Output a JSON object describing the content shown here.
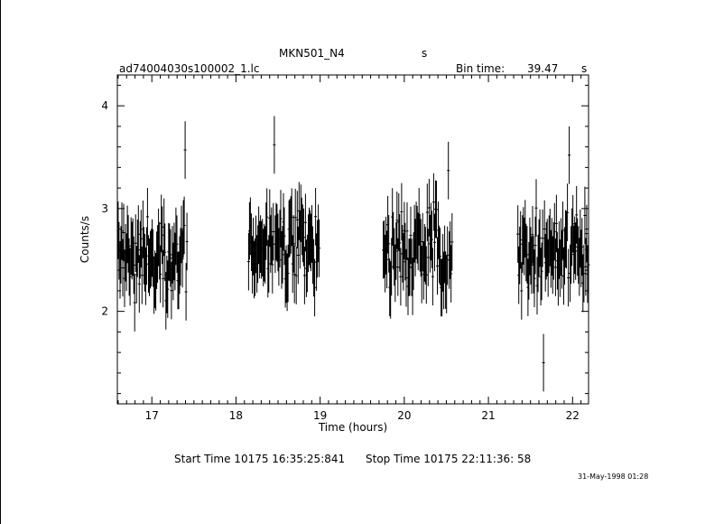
{
  "header": {
    "source_name": "MKN501_N4",
    "unit_flag": "s",
    "file_name": "ad74004030s100002_1.lc",
    "bin_time_label": "Bin time:",
    "bin_time_value": "39.47",
    "bin_time_unit": "s"
  },
  "footer": {
    "start_time": "Start Time 10175 16:35:25:841",
    "stop_time": "Stop Time 10175 22:11:36: 58",
    "timestamp": "31-May-1998 01:28"
  },
  "chart_data": {
    "type": "scatter",
    "xlabel": "Time (hours)",
    "ylabel": "Counts/s",
    "xlim": [
      16.59,
      22.19
    ],
    "ylim": [
      1.1,
      4.3
    ],
    "x_ticks": [
      17,
      18,
      19,
      20,
      21,
      22
    ],
    "y_ticks": [
      2,
      3,
      4
    ],
    "grid": false,
    "segments": [
      {
        "start": 16.6,
        "end": 17.42,
        "mean": 2.55,
        "spread": 0.32,
        "peak": {
          "x": 17.4,
          "y": 3.85
        }
      },
      {
        "start": 18.15,
        "end": 19.0,
        "mean": 2.6,
        "spread": 0.3,
        "peak": {
          "x": 18.45,
          "y": 3.9
        }
      },
      {
        "start": 19.75,
        "end": 20.57,
        "mean": 2.6,
        "spread": 0.3,
        "peak": {
          "x": 20.52,
          "y": 3.65
        }
      },
      {
        "start": 21.35,
        "end": 22.19,
        "mean": 2.6,
        "spread": 0.3,
        "peak": {
          "x": 21.96,
          "y": 3.8
        },
        "low": {
          "x": 21.66,
          "y": 1.22
        }
      }
    ],
    "error_bar_halfwidth": 0.28
  }
}
